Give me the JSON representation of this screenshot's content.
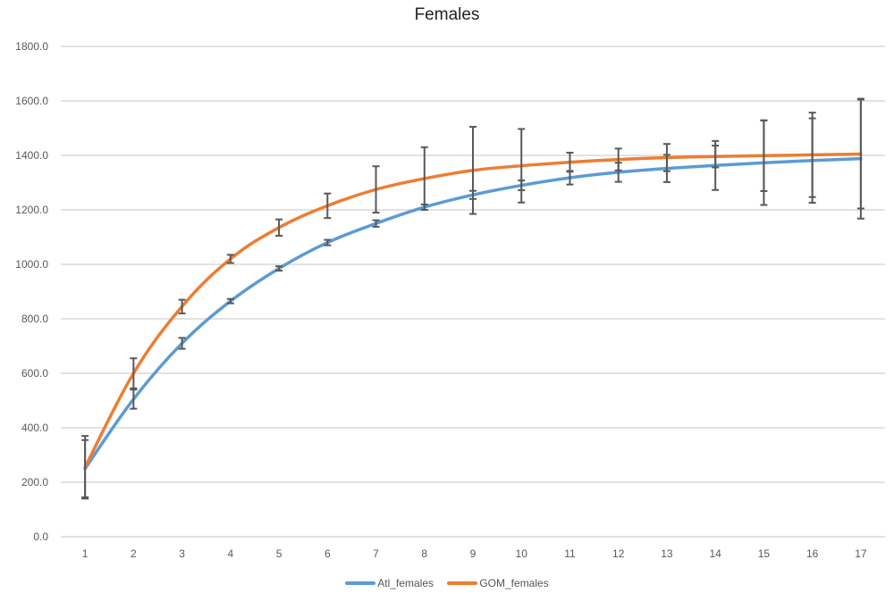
{
  "chart_data": {
    "type": "line",
    "title": "Females",
    "xlabel": "",
    "ylabel": "",
    "categories": [
      "1",
      "2",
      "3",
      "4",
      "5",
      "6",
      "7",
      "8",
      "9",
      "10",
      "11",
      "12",
      "13",
      "14",
      "15",
      "16",
      "17"
    ],
    "ylim": [
      0,
      1800
    ],
    "yticks": [
      "0.0",
      "200.0",
      "400.0",
      "600.0",
      "800.0",
      "1000.0",
      "1200.0",
      "1400.0",
      "1600.0",
      "1800.0"
    ],
    "grid": "horizontal",
    "legend_position": "bottom",
    "series": [
      {
        "name": "Atl_females",
        "color": "#5B9BD5",
        "values": [
          250,
          505,
          710,
          865,
          985,
          1080,
          1150,
          1210,
          1255,
          1290,
          1318,
          1338,
          1352,
          1363,
          1373,
          1381,
          1388
        ],
        "error": [
          105,
          35,
          20,
          8,
          8,
          10,
          12,
          10,
          15,
          18,
          25,
          35,
          50,
          90,
          155,
          155,
          220
        ]
      },
      {
        "name": "GOM_females",
        "color": "#ED7D31",
        "values": [
          255,
          600,
          845,
          1020,
          1135,
          1215,
          1275,
          1315,
          1345,
          1362,
          1375,
          1385,
          1392,
          1396,
          1399,
          1402,
          1405
        ],
        "error": [
          115,
          55,
          25,
          15,
          30,
          45,
          85,
          115,
          160,
          135,
          35,
          40,
          50,
          40,
          130,
          155,
          200
        ]
      }
    ]
  }
}
